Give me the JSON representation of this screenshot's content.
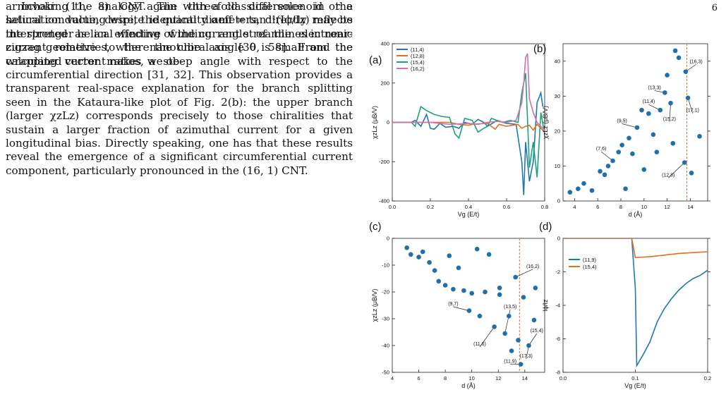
{
  "page_number": "6",
  "paragraph_1": "armchair (11, 8) CNT. The threefold difference in the saturation value, despite identical diameters, directly reflects the stronger helical winding of the current streamlines in near-zigzag geometries, where the chiral angle θ is small and the wrapping vector makes a steep angle with respect to the circumferential direction [31, 32]. This observation provides a transparent real-space explanation for the branch splitting seen in the Kataura-like plot of Fig. 2(b): the upper branch (larger χzLz) corresponds precisely to those chiralities that sustain a larger fraction of azimuthal current for a given longitudinal bias. Directly speaking, one has that these results reveal the emergence of a significant circumferential current component, particularly pronounced in the (16, 1) CNT.",
  "paragraph_2": "Invoking the analogy again with a classical solenoid or a helical conducting wire, the quantity αeff = tan⁻¹(Iϕ/Iz) may be interpreted as an effective winding angle of the electronic current relative to the nanotube axis [30, 58]. From the calculated current ratios, we ob-",
  "chart_data": [
    {
      "panel": "(a)",
      "type": "line",
      "xlabel": "Vg (E/t)",
      "ylabel": "χzLz (μB/V)",
      "xlim": [
        0,
        0.8
      ],
      "ylim": [
        -400,
        400
      ],
      "xticks": [
        "0.0",
        "0.2",
        "0.4",
        "0.6",
        "0.8"
      ],
      "yticks": [
        "-400",
        "-200",
        "0",
        "200",
        "400"
      ],
      "legend_placement": "top-left",
      "series": [
        {
          "name": "(11,4)",
          "color": "#1f77b4",
          "points": [
            [
              0,
              0
            ],
            [
              0.1,
              0
            ],
            [
              0.12,
              10
            ],
            [
              0.15,
              -20
            ],
            [
              0.18,
              40
            ],
            [
              0.2,
              -30
            ],
            [
              0.22,
              -35
            ],
            [
              0.25,
              -5
            ],
            [
              0.28,
              -25
            ],
            [
              0.32,
              -20
            ],
            [
              0.35,
              -30
            ],
            [
              0.38,
              0
            ],
            [
              0.42,
              -10
            ],
            [
              0.45,
              15
            ],
            [
              0.48,
              0
            ],
            [
              0.5,
              -20
            ],
            [
              0.55,
              10
            ],
            [
              0.6,
              -5
            ],
            [
              0.65,
              -10
            ],
            [
              0.68,
              -200
            ],
            [
              0.69,
              -370
            ],
            [
              0.7,
              -100
            ],
            [
              0.72,
              -300
            ],
            [
              0.74,
              -200
            ],
            [
              0.76,
              100
            ],
            [
              0.78,
              150
            ],
            [
              0.79,
              80
            ]
          ]
        },
        {
          "name": "(12,8)",
          "color": "#e07020",
          "points": [
            [
              0,
              0
            ],
            [
              0.3,
              0
            ],
            [
              0.35,
              -10
            ],
            [
              0.4,
              -15
            ],
            [
              0.42,
              -10
            ],
            [
              0.45,
              -8
            ],
            [
              0.5,
              -5
            ],
            [
              0.52,
              -20
            ],
            [
              0.54,
              -35
            ],
            [
              0.56,
              -10
            ],
            [
              0.6,
              -20
            ],
            [
              0.63,
              -15
            ],
            [
              0.66,
              -10
            ],
            [
              0.68,
              -30
            ],
            [
              0.7,
              -20
            ],
            [
              0.72,
              -15
            ],
            [
              0.74,
              -40
            ],
            [
              0.76,
              -10
            ],
            [
              0.78,
              -30
            ],
            [
              0.8,
              -50
            ]
          ]
        },
        {
          "name": "(15,4)",
          "color": "#1aa37a",
          "points": [
            [
              0,
              0
            ],
            [
              0.1,
              0
            ],
            [
              0.12,
              -20
            ],
            [
              0.15,
              80
            ],
            [
              0.18,
              60
            ],
            [
              0.22,
              40
            ],
            [
              0.26,
              30
            ],
            [
              0.3,
              25
            ],
            [
              0.33,
              -60
            ],
            [
              0.35,
              -80
            ],
            [
              0.38,
              20
            ],
            [
              0.42,
              10
            ],
            [
              0.45,
              -50
            ],
            [
              0.48,
              -30
            ],
            [
              0.5,
              -20
            ],
            [
              0.52,
              20
            ],
            [
              0.55,
              10
            ],
            [
              0.58,
              0
            ],
            [
              0.62,
              10
            ],
            [
              0.66,
              0
            ],
            [
              0.68,
              150
            ],
            [
              0.7,
              250
            ],
            [
              0.72,
              -230
            ],
            [
              0.74,
              -100
            ],
            [
              0.76,
              -280
            ],
            [
              0.78,
              50
            ],
            [
              0.8,
              -60
            ]
          ]
        },
        {
          "name": "(16,2)",
          "color": "#d16fb0",
          "points": [
            [
              0,
              0
            ],
            [
              0.2,
              0
            ],
            [
              0.25,
              -5
            ],
            [
              0.3,
              -10
            ],
            [
              0.35,
              -8
            ],
            [
              0.4,
              -5
            ],
            [
              0.45,
              -10
            ],
            [
              0.5,
              0
            ],
            [
              0.55,
              5
            ],
            [
              0.6,
              0
            ],
            [
              0.65,
              10
            ],
            [
              0.68,
              100
            ],
            [
              0.69,
              200
            ],
            [
              0.7,
              330
            ],
            [
              0.71,
              350
            ],
            [
              0.72,
              120
            ],
            [
              0.74,
              50
            ],
            [
              0.76,
              0
            ],
            [
              0.78,
              -20
            ],
            [
              0.8,
              -40
            ]
          ]
        }
      ]
    },
    {
      "panel": "(b)",
      "type": "scatter",
      "xlabel": "d (Å)",
      "ylabel": "χzLz (μB/V)",
      "xlim": [
        3,
        15.5
      ],
      "ylim": [
        0,
        45
      ],
      "xticks": [
        "4",
        "6",
        "8",
        "10",
        "12",
        "14"
      ],
      "yticks": [
        "0",
        "10",
        "20",
        "30",
        "40"
      ],
      "vline": 13.7,
      "points": [
        [
          3.6,
          2.5
        ],
        [
          4.3,
          3.5
        ],
        [
          4.8,
          5
        ],
        [
          5.5,
          3
        ],
        [
          6.2,
          8.5
        ],
        [
          6.6,
          7.5
        ],
        [
          6.9,
          10
        ],
        [
          7.3,
          11.5
        ],
        [
          7.8,
          14
        ],
        [
          8.1,
          16
        ],
        [
          8.4,
          3.5
        ],
        [
          8.7,
          18
        ],
        [
          9.0,
          13.5
        ],
        [
          9.4,
          21
        ],
        [
          9.8,
          26
        ],
        [
          10.0,
          9
        ],
        [
          10.4,
          25
        ],
        [
          10.8,
          19
        ],
        [
          11.1,
          14
        ],
        [
          11.4,
          26
        ],
        [
          11.8,
          31
        ],
        [
          12.0,
          36
        ],
        [
          12.3,
          28
        ],
        [
          12.5,
          16.5
        ],
        [
          12.7,
          43
        ],
        [
          13.0,
          41
        ],
        [
          13.5,
          11
        ],
        [
          13.6,
          37
        ],
        [
          13.8,
          29.5
        ],
        [
          14.1,
          8
        ],
        [
          14.8,
          18.5
        ]
      ],
      "annotations": [
        {
          "label": "(16,3)",
          "x": 14.5,
          "y": 39.5,
          "tx": 13.6,
          "ty": 37
        },
        {
          "label": "(13,3)",
          "x": 10.9,
          "y": 32,
          "tx": 11.8,
          "ty": 31
        },
        {
          "label": "(11,4)",
          "x": 10.4,
          "y": 28,
          "tx": 11.4,
          "ty": 26
        },
        {
          "label": "(9,5)",
          "x": 8.1,
          "y": 22.5,
          "tx": 9.4,
          "ty": 21
        },
        {
          "label": "(15,2)",
          "x": 12.2,
          "y": 23,
          "tx": 12.3,
          "ty": 28
        },
        {
          "label": "(17,1)",
          "x": 14.2,
          "y": 25.5,
          "tx": 13.8,
          "ty": 29.5
        },
        {
          "label": "(7,6)",
          "x": 6.3,
          "y": 14.5,
          "tx": 7.3,
          "ty": 11.5
        },
        {
          "label": "(12,8)",
          "x": 12.1,
          "y": 7,
          "tx": 13.5,
          "ty": 11
        }
      ]
    },
    {
      "panel": "(c)",
      "type": "scatter",
      "xlabel": "d (Å)",
      "ylabel": "χzLz (μB/V)",
      "xlim": [
        4,
        15.5
      ],
      "ylim": [
        -50,
        0
      ],
      "xticks": [
        "4",
        "6",
        "8",
        "10",
        "12",
        "14"
      ],
      "yticks": [
        "-50",
        "-40",
        "-30",
        "-20",
        "-10",
        "0"
      ],
      "vline": 13.6,
      "points": [
        [
          5.1,
          -3.5
        ],
        [
          5.4,
          -6
        ],
        [
          6.0,
          -7
        ],
        [
          6.3,
          -5
        ],
        [
          6.8,
          -9
        ],
        [
          7.2,
          -12
        ],
        [
          7.5,
          -16
        ],
        [
          8.0,
          -17.5
        ],
        [
          8.3,
          -6.5
        ],
        [
          8.6,
          -19
        ],
        [
          9.0,
          -11
        ],
        [
          9.4,
          -19.5
        ],
        [
          9.8,
          -27
        ],
        [
          10.0,
          -20.5
        ],
        [
          10.4,
          -4
        ],
        [
          10.6,
          -29
        ],
        [
          11.0,
          -20
        ],
        [
          11.3,
          -6
        ],
        [
          11.7,
          -33
        ],
        [
          12.1,
          -18.5
        ],
        [
          12.1,
          -21
        ],
        [
          12.5,
          -35.5
        ],
        [
          12.8,
          -29
        ],
        [
          13.0,
          -42
        ],
        [
          13.3,
          -14.5
        ],
        [
          13.5,
          -38
        ],
        [
          13.7,
          -47
        ],
        [
          13.9,
          -22
        ],
        [
          14.3,
          -40
        ],
        [
          14.7,
          -30.5
        ],
        [
          14.8,
          -18.5
        ]
      ],
      "annotations": [
        {
          "label": "(16,2)",
          "x": 14.6,
          "y": -11,
          "tx": 13.3,
          "ty": -14.5
        },
        {
          "label": "(9,7)",
          "x": 8.6,
          "y": -25,
          "tx": 9.8,
          "ty": -27
        },
        {
          "label": "(13,5)",
          "x": 12.9,
          "y": -26,
          "tx": 12.5,
          "ty": -35.5
        },
        {
          "label": "(11,6)",
          "x": 10.6,
          "y": -40,
          "tx": 11.7,
          "ty": -33
        },
        {
          "label": "(15,4)",
          "x": 14.9,
          "y": -35,
          "tx": 14.3,
          "ty": -40
        },
        {
          "label": "(17,3)",
          "x": 14.1,
          "y": -44.5,
          "tx": 14.3,
          "ty": -40
        },
        {
          "label": "(11,9)",
          "x": 12.9,
          "y": -46.5,
          "tx": 13.7,
          "ty": -47
        }
      ]
    },
    {
      "panel": "(d)",
      "type": "line",
      "xlabel": "Vg (E/t)",
      "ylabel": "Iϕ/Iz",
      "xlim": [
        0,
        0.2
      ],
      "ylim": [
        -8,
        0
      ],
      "xticks": [
        "0.0",
        "0.1",
        "0.2"
      ],
      "yticks": [
        "-8",
        "-6",
        "-4",
        "-2",
        "0"
      ],
      "legend_placement": "upper-left",
      "series": [
        {
          "name": "(11,9)",
          "color": "#1f77b4",
          "points": [
            [
              0,
              0
            ],
            [
              0.095,
              0
            ],
            [
              0.1,
              -3
            ],
            [
              0.102,
              -7.6
            ],
            [
              0.11,
              -7
            ],
            [
              0.12,
              -6.2
            ],
            [
              0.13,
              -5
            ],
            [
              0.14,
              -4.2
            ],
            [
              0.15,
              -3.6
            ],
            [
              0.16,
              -3.1
            ],
            [
              0.17,
              -2.7
            ],
            [
              0.18,
              -2.4
            ],
            [
              0.19,
              -2.2
            ],
            [
              0.2,
              -1.9
            ]
          ]
        },
        {
          "name": "(15,4)",
          "color": "#e07020",
          "points": [
            [
              0,
              0
            ],
            [
              0.095,
              0
            ],
            [
              0.1,
              -1.15
            ],
            [
              0.12,
              -1.1
            ],
            [
              0.14,
              -1.0
            ],
            [
              0.16,
              -0.9
            ],
            [
              0.18,
              -0.85
            ],
            [
              0.2,
              -0.8
            ]
          ]
        }
      ]
    }
  ]
}
